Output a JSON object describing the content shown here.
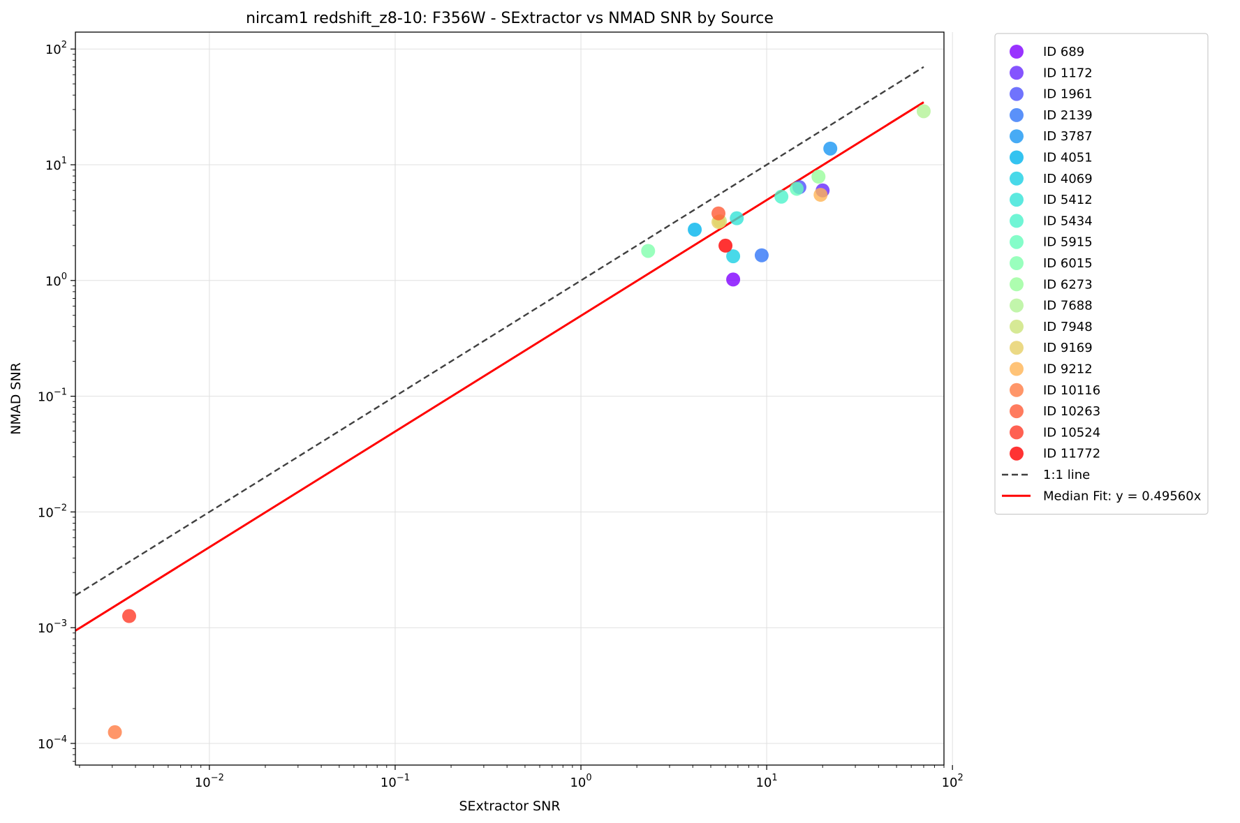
{
  "chart_data": {
    "type": "scatter",
    "title": "nircam1 redshift_z8-10: F356W - SExtractor vs NMAD SNR by Source",
    "xlabel": "SExtractor SNR",
    "ylabel": "NMAD SNR",
    "xscale": "log",
    "yscale": "log",
    "xlim": [
      0.0019,
      90
    ],
    "ylim": [
      6.5e-05,
      140
    ],
    "grid": true,
    "legend_position": "outside-right-top",
    "x_ticks": [
      {
        "base": "10",
        "exp": "−2",
        "value": 0.01
      },
      {
        "base": "10",
        "exp": "−1",
        "value": 0.1
      },
      {
        "base": "10",
        "exp": "0",
        "value": 1
      },
      {
        "base": "10",
        "exp": "1",
        "value": 10
      },
      {
        "base": "10",
        "exp": "2",
        "value": 100
      }
    ],
    "y_ticks": [
      {
        "base": "10",
        "exp": "−4",
        "value": 0.0001
      },
      {
        "base": "10",
        "exp": "−3",
        "value": 0.001
      },
      {
        "base": "10",
        "exp": "−2",
        "value": 0.01
      },
      {
        "base": "10",
        "exp": "−1",
        "value": 0.1
      },
      {
        "base": "10",
        "exp": "0",
        "value": 1
      },
      {
        "base": "10",
        "exp": "1",
        "value": 10
      },
      {
        "base": "10",
        "exp": "2",
        "value": 100
      }
    ],
    "series": [
      {
        "name": "ID 689",
        "color": "#8000ff",
        "points": [
          [
            6.6,
            1.02
          ]
        ]
      },
      {
        "name": "ID 1172",
        "color": "#6629fe",
        "points": [
          [
            20.0,
            6.0
          ]
        ]
      },
      {
        "name": "ID 1961",
        "color": "#4c50fc",
        "points": [
          [
            15.0,
            6.4
          ]
        ]
      },
      {
        "name": "ID 2139",
        "color": "#3176f8",
        "points": [
          [
            9.4,
            1.65
          ]
        ]
      },
      {
        "name": "ID 3787",
        "color": "#1996f3",
        "points": [
          [
            22.0,
            13.8
          ]
        ]
      },
      {
        "name": "ID 4051",
        "color": "#00b4ec",
        "points": [
          [
            4.1,
            2.75
          ]
        ]
      },
      {
        "name": "ID 4069",
        "color": "#1acfe3",
        "points": [
          [
            6.6,
            1.62
          ]
        ]
      },
      {
        "name": "ID 5412",
        "color": "#33e4d7",
        "points": [
          [
            6.9,
            3.45
          ]
        ]
      },
      {
        "name": "ID 5434",
        "color": "#4cf2ca",
        "points": [
          [
            12.0,
            5.3
          ]
        ]
      },
      {
        "name": "ID 5915",
        "color": "#66fcbb",
        "points": [
          [
            14.5,
            6.2
          ]
        ]
      },
      {
        "name": "ID 6015",
        "color": "#80ffac",
        "points": [
          [
            2.3,
            1.8
          ]
        ]
      },
      {
        "name": "ID 6273",
        "color": "#99fc9b",
        "points": [
          [
            19.0,
            7.9
          ]
        ]
      },
      {
        "name": "ID 7688",
        "color": "#b3f296",
        "points": [
          [
            70.0,
            29.0
          ]
        ]
      },
      {
        "name": "ID 7948",
        "color": "#cce47a",
        "points": [
          [
            5.6,
            3.25
          ]
        ]
      },
      {
        "name": "ID 9169",
        "color": "#e6cf67",
        "points": [
          [
            5.5,
            3.2
          ]
        ]
      },
      {
        "name": "ID 9212",
        "color": "#ffb455",
        "points": [
          [
            19.5,
            5.5
          ]
        ]
      },
      {
        "name": "ID 10116",
        "color": "#ff7c43",
        "points": [
          [
            0.0031,
            0.000125
          ]
        ]
      },
      {
        "name": "ID 10263",
        "color": "#ff5a36",
        "points": [
          [
            5.5,
            3.8
          ]
        ]
      },
      {
        "name": "ID 10524",
        "color": "#ff3a27",
        "points": [
          [
            0.0037,
            0.00126
          ]
        ]
      },
      {
        "name": "ID 11772",
        "color": "#ff0000",
        "points": [
          [
            6.0,
            2.0
          ]
        ]
      }
    ],
    "lines": [
      {
        "name": "1:1 line",
        "color": "#404040",
        "dash": "dashed",
        "slope": 1.0,
        "x_range": [
          0.0019,
          70
        ]
      },
      {
        "name": "Median Fit: y = 0.49560x",
        "color": "#ff0000",
        "dash": "solid",
        "slope": 0.4956,
        "x_range": [
          0.0019,
          70
        ]
      }
    ]
  }
}
